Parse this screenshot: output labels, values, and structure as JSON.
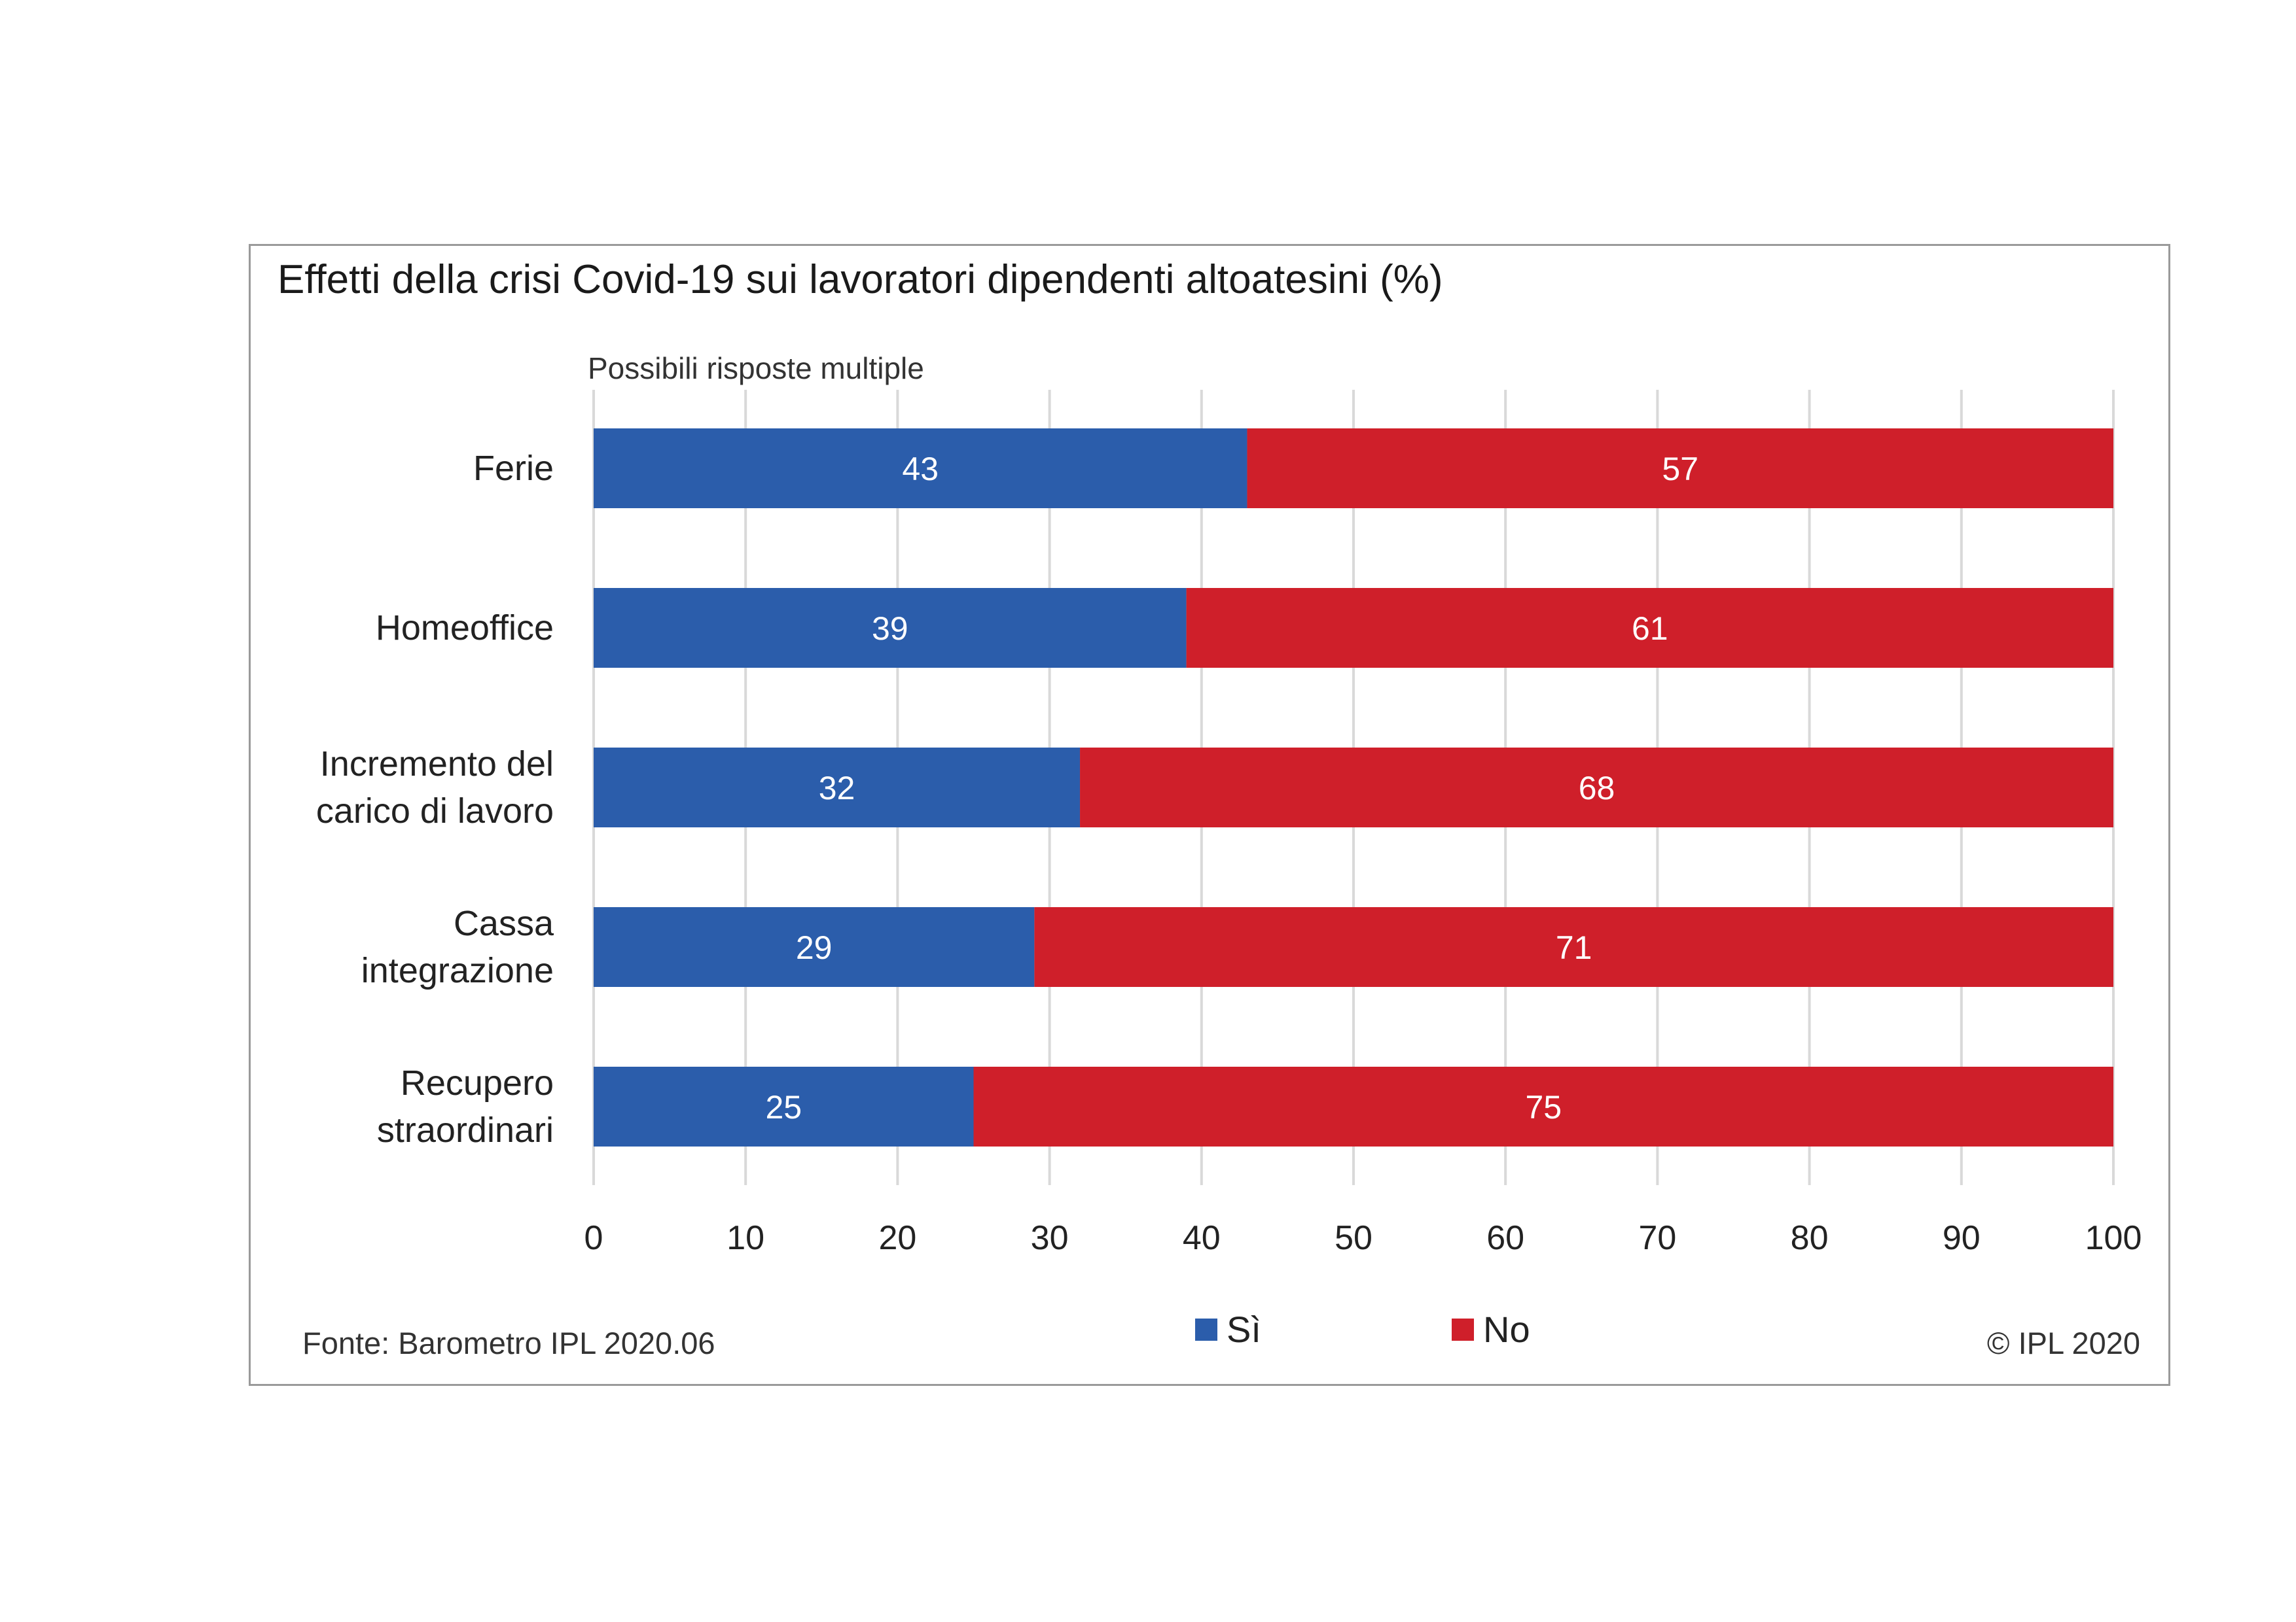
{
  "chart_data": {
    "type": "bar",
    "orientation": "horizontal",
    "stacked": true,
    "title": "Effetti della crisi Covid-19 sui lavoratori dipendenti altoatesini (%)",
    "subtitle": "Possibili risposte multiple",
    "categories": [
      [
        "Ferie"
      ],
      [
        "Homeoffice"
      ],
      [
        "Incremento del",
        "carico di lavoro"
      ],
      [
        "Cassa",
        "integrazione"
      ],
      [
        "Recupero",
        "straordinari"
      ]
    ],
    "series": [
      {
        "name": "Sì",
        "color": "#2b5dab",
        "values": [
          43,
          39,
          32,
          29,
          25
        ]
      },
      {
        "name": "No",
        "color": "#cf1f2a",
        "values": [
          57,
          61,
          68,
          71,
          75
        ]
      }
    ],
    "xlim": [
      0,
      100
    ],
    "xticks": [
      "0",
      "10",
      "20",
      "30",
      "40",
      "50",
      "60",
      "70",
      "80",
      "90",
      "100"
    ],
    "grid": true,
    "legend_position": "bottom"
  },
  "source": "Fonte: Barometro IPL 2020.06",
  "copyright": "© IPL 2020",
  "colors": {
    "gridline": "#d9d9d9",
    "frame": "#9a9a9a",
    "data_label": "#ffffff"
  }
}
